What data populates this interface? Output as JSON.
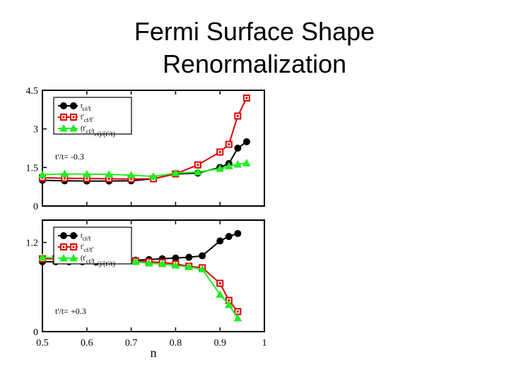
{
  "slide": {
    "title_line1": "Fermi Surface Shape",
    "title_line2": "Renormalization"
  },
  "colors": {
    "black_series": "#000000",
    "red_series": "#e00000",
    "green_series": "#22ee22",
    "frame": "#000000"
  },
  "chart_data": [
    {
      "type": "line",
      "panel": "top",
      "annotation": "t'/t= -0.3",
      "ylim": [
        0,
        4.5
      ],
      "yticks": [
        "0",
        "1.5",
        "3",
        "4.5"
      ],
      "xlim": [
        0.5,
        1
      ],
      "series": [
        {
          "name": "t_cf/t",
          "marker": "circle",
          "color": "#000000",
          "x": [
            0.5,
            0.55,
            0.6,
            0.65,
            0.7,
            0.75,
            0.8,
            0.85,
            0.9,
            0.92,
            0.94,
            0.96
          ],
          "y": [
            1.0,
            0.98,
            0.97,
            0.97,
            0.98,
            1.06,
            1.25,
            1.28,
            1.5,
            1.65,
            2.25,
            2.5
          ]
        },
        {
          "name": "t'_cf/t'",
          "marker": "square",
          "color": "#e00000",
          "x": [
            0.5,
            0.55,
            0.6,
            0.65,
            0.7,
            0.75,
            0.8,
            0.85,
            0.9,
            0.92,
            0.94,
            0.96
          ],
          "y": [
            1.1,
            1.08,
            1.07,
            1.06,
            1.05,
            1.06,
            1.25,
            1.6,
            2.1,
            2.4,
            3.5,
            4.2
          ]
        },
        {
          "name": "(t'_cf/t_cf)/(t'/t)",
          "marker": "triangle",
          "color": "#22ee22",
          "x": [
            0.5,
            0.55,
            0.6,
            0.65,
            0.7,
            0.75,
            0.8,
            0.85,
            0.9,
            0.92,
            0.94,
            0.96
          ],
          "y": [
            1.22,
            1.25,
            1.24,
            1.23,
            1.2,
            1.15,
            1.28,
            1.32,
            1.45,
            1.55,
            1.62,
            1.67
          ]
        }
      ]
    },
    {
      "type": "line",
      "panel": "bottom",
      "annotation": "t'/t= +0.3",
      "ylim": [
        0,
        1.5
      ],
      "yticks": [
        "0",
        "1.2"
      ],
      "xlabel": "n",
      "xlim": [
        0.5,
        1
      ],
      "xticks": [
        "0.5",
        "0.6",
        "0.7",
        "0.8",
        "0.9",
        "1"
      ],
      "series": [
        {
          "name": "t_cf/t",
          "marker": "circle",
          "color": "#000000",
          "x": [
            0.5,
            0.53,
            0.56,
            0.59,
            0.62,
            0.65,
            0.68,
            0.71,
            0.74,
            0.77,
            0.8,
            0.83,
            0.86,
            0.9,
            0.92,
            0.94
          ],
          "y": [
            0.94,
            0.94,
            0.94,
            0.94,
            0.94,
            0.95,
            0.96,
            0.96,
            0.97,
            0.98,
            0.99,
            1.0,
            1.02,
            1.22,
            1.28,
            1.32
          ]
        },
        {
          "name": "t'_cf/t'",
          "marker": "square",
          "color": "#e00000",
          "x": [
            0.5,
            0.53,
            0.56,
            0.59,
            0.62,
            0.65,
            0.68,
            0.71,
            0.74,
            0.77,
            0.8,
            0.83,
            0.86,
            0.9,
            0.92,
            0.94
          ],
          "y": [
            0.98,
            0.98,
            0.98,
            0.98,
            0.97,
            0.97,
            0.96,
            0.95,
            0.94,
            0.93,
            0.91,
            0.88,
            0.86,
            0.65,
            0.42,
            0.27
          ]
        },
        {
          "name": "(t'_cf/t_cf)/(t'/t)",
          "marker": "triangle",
          "color": "#22ee22",
          "x": [
            0.5,
            0.53,
            0.56,
            0.59,
            0.62,
            0.65,
            0.68,
            0.71,
            0.74,
            0.77,
            0.8,
            0.83,
            0.86,
            0.9,
            0.92,
            0.94
          ],
          "y": [
            1.0,
            0.99,
            0.99,
            0.98,
            0.97,
            0.96,
            0.95,
            0.94,
            0.92,
            0.91,
            0.89,
            0.87,
            0.84,
            0.5,
            0.36,
            0.18
          ]
        }
      ]
    }
  ]
}
